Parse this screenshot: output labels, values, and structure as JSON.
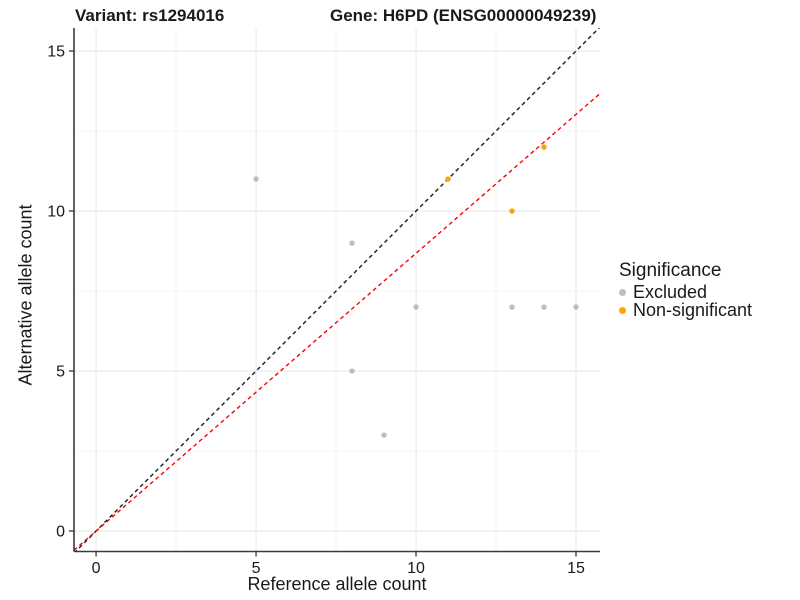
{
  "chart_data": {
    "type": "scatter",
    "title_left": "Variant: rs1294016",
    "title_right": "Gene: H6PD (ENSG00000049239)",
    "xlabel": "Reference allele count",
    "ylabel": "Alternative allele count",
    "x_ticks": [
      0,
      5,
      10,
      15
    ],
    "y_ticks": [
      0,
      5,
      10,
      15
    ],
    "x_minor_ticks": [
      2.5,
      7.5,
      12.5
    ],
    "y_minor_ticks": [
      2.5,
      7.5,
      12.5
    ],
    "xlim": [
      -0.69,
      15.75
    ],
    "ylim": [
      -0.64,
      15.72
    ],
    "grid": true,
    "legend_position": "right",
    "series": [
      {
        "name": "Excluded",
        "color": "#BDBDBD",
        "points": [
          [
            5,
            11
          ],
          [
            8,
            9
          ],
          [
            8,
            5
          ],
          [
            9,
            3
          ],
          [
            10,
            7
          ],
          [
            13,
            7
          ],
          [
            14,
            7
          ],
          [
            15,
            7
          ]
        ]
      },
      {
        "name": "Non-significant",
        "color": "#FFA500",
        "points": [
          [
            11,
            11
          ],
          [
            13,
            10
          ],
          [
            14,
            12
          ]
        ]
      }
    ],
    "ablines": [
      {
        "name": "identity-line",
        "slope": 1,
        "intercept": 0,
        "color": "#1a1a1a",
        "dashed": true
      },
      {
        "name": "fitted-ratio-line",
        "slope": 0.868,
        "intercept": 0,
        "color": "#FF0000",
        "dashed": true
      }
    ],
    "legend": {
      "title": "Significance",
      "entries": [
        {
          "label": "Excluded",
          "color": "#BDBDBD"
        },
        {
          "label": "Non-significant",
          "color": "#FFA500"
        }
      ]
    },
    "style_colors": {
      "major_grid": "#E9E9E9",
      "minor_grid": "#F4F4F4",
      "axis_line": "#3a3a3a",
      "tick_label": "#1a1a1a"
    }
  }
}
